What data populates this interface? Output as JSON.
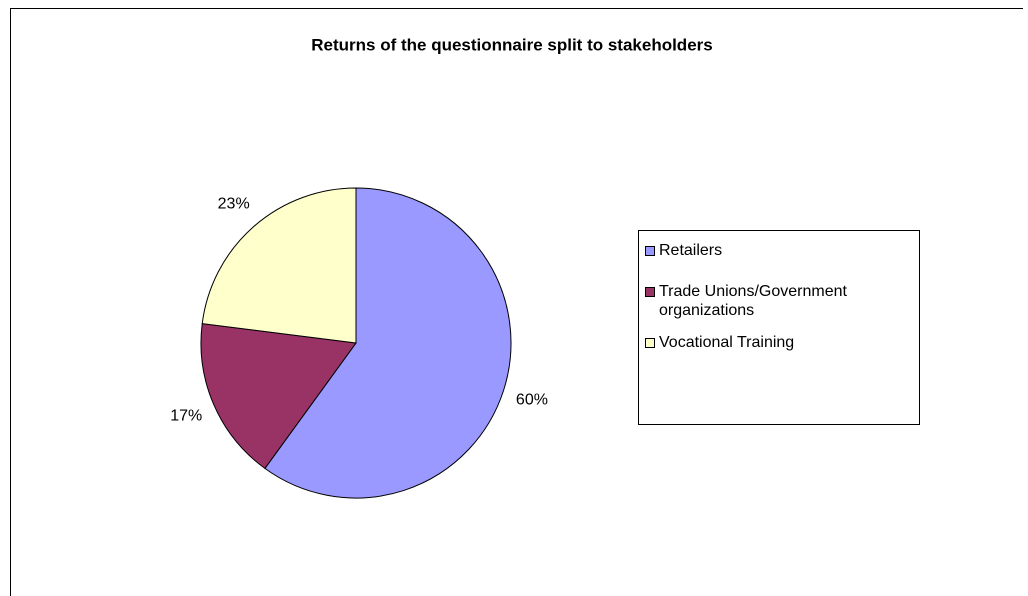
{
  "chart_data": {
    "type": "pie",
    "title": "Returns of the questionnaire split to stakeholders",
    "categories": [
      "Retailers",
      "Trade Unions/Government organizations",
      "Vocational Training"
    ],
    "values": [
      60,
      17,
      23
    ],
    "value_labels": [
      "60%",
      "17%",
      "23%"
    ],
    "colors": [
      "#9999ff",
      "#993366",
      "#ffffcc"
    ],
    "legend": "right"
  }
}
